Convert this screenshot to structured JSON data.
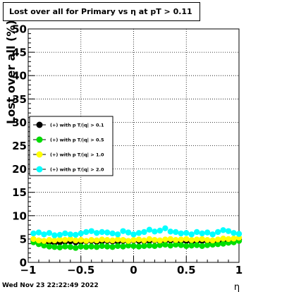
{
  "chart_data": {
    "type": "scatter",
    "title": "Lost over all for Primary vs  η at pT > 0.11",
    "xlabel": "η",
    "ylabel": "Lost over all (%)",
    "xlim": [
      -1,
      1
    ],
    "ylim": [
      0,
      50
    ],
    "x_ticks": [
      "−1",
      "−0.5",
      "0",
      "0.5",
      "1"
    ],
    "y_ticks": [
      "0",
      "5",
      "10",
      "15",
      "20",
      "25",
      "30",
      "35",
      "40",
      "45",
      "50"
    ],
    "grid": true,
    "legend_position": "middle-left",
    "x": [
      -0.95,
      -0.9,
      -0.85,
      -0.8,
      -0.75,
      -0.7,
      -0.65,
      -0.6,
      -0.55,
      -0.5,
      -0.45,
      -0.4,
      -0.35,
      -0.3,
      -0.25,
      -0.2,
      -0.15,
      -0.1,
      -0.05,
      0,
      0.05,
      0.1,
      0.15,
      0.2,
      0.25,
      0.3,
      0.35,
      0.4,
      0.45,
      0.5,
      0.55,
      0.6,
      0.65,
      0.7,
      0.75,
      0.8,
      0.85,
      0.9,
      0.95,
      1.0
    ],
    "series": [
      {
        "name": "(+) with p T/|q| > 0.1",
        "color": "#000000",
        "values": [
          4.6,
          4.5,
          4.4,
          4.3,
          4.2,
          4.3,
          4.4,
          4.5,
          4.3,
          4.4,
          4.5,
          4.6,
          4.4,
          4.5,
          4.6,
          4.5,
          4.4,
          4.6,
          4.5,
          4.7,
          4.6,
          4.5,
          4.6,
          4.7,
          4.5,
          4.6,
          4.7,
          4.6,
          4.5,
          4.6,
          4.4,
          4.5,
          4.6,
          4.5,
          4.4,
          4.5,
          4.6,
          4.7,
          4.8,
          4.9
        ]
      },
      {
        "name": "(+) with p T/|q| > 0.5",
        "color": "#00dd00",
        "values": [
          4.3,
          3.9,
          3.6,
          3.4,
          3.3,
          3.2,
          3.4,
          3.3,
          3.1,
          3.4,
          3.3,
          3.4,
          3.3,
          3.5,
          3.4,
          3.3,
          3.5,
          3.4,
          3.6,
          3.5,
          3.4,
          3.5,
          3.6,
          3.5,
          3.7,
          3.8,
          3.6,
          3.8,
          3.7,
          3.5,
          3.6,
          3.7,
          3.5,
          3.7,
          3.8,
          3.9,
          4.0,
          4.2,
          4.3,
          4.6
        ]
      },
      {
        "name": "(+) with p T/|q| > 1.0",
        "color": "#ffff00",
        "values": [
          5.0,
          4.7,
          4.6,
          4.8,
          4.7,
          4.9,
          4.8,
          5.0,
          4.7,
          4.8,
          4.6,
          4.8,
          4.7,
          4.9,
          4.8,
          4.7,
          4.9,
          4.8,
          4.6,
          4.8,
          4.9,
          4.7,
          5.0,
          4.8,
          4.7,
          4.9,
          5.0,
          4.8,
          4.9,
          5.0,
          4.8,
          4.9,
          5.0,
          4.8,
          4.7,
          4.9,
          5.1,
          5.0,
          5.1,
          5.3
        ]
      },
      {
        "name": "(+) with p T/|q| > 2.0",
        "color": "#00ffff",
        "values": [
          6.2,
          6.4,
          6.0,
          6.3,
          5.8,
          5.9,
          6.2,
          6.0,
          5.9,
          6.2,
          6.5,
          6.7,
          6.3,
          6.5,
          6.4,
          6.2,
          6.0,
          6.7,
          6.4,
          6.0,
          6.3,
          6.5,
          7.0,
          6.6,
          6.8,
          7.3,
          6.6,
          6.5,
          6.2,
          6.3,
          6.0,
          6.5,
          6.2,
          6.4,
          6.0,
          6.5,
          6.9,
          6.7,
          6.3,
          6.1
        ]
      }
    ]
  },
  "footer": {
    "date": "Wed Nov 23 22:22:49 2022"
  }
}
